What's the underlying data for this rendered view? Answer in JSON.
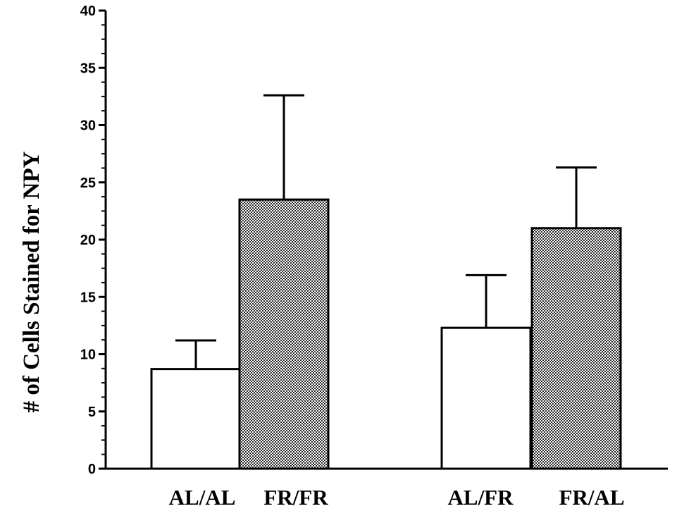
{
  "chart_data": {
    "type": "bar",
    "categories": [
      "AL/AL",
      "FR/FR",
      "AL/FR",
      "FR/AL"
    ],
    "values": [
      8.7,
      23.5,
      12.3,
      21.0
    ],
    "error_upper": [
      11.2,
      32.6,
      16.9,
      26.3
    ],
    "fills": [
      "open",
      "stippled",
      "open",
      "stippled"
    ],
    "title": "",
    "xlabel": "",
    "ylabel": "# of Cells Stained for NPY",
    "ylim": [
      0,
      40
    ],
    "yticks": [
      "0",
      "5",
      "10",
      "15",
      "20",
      "25",
      "30",
      "35",
      "40"
    ],
    "grid": false,
    "legend": "none",
    "colors": {
      "axis": "#000000",
      "open_bar": "#ffffff",
      "stipple_bg": "#ffffff",
      "stipple_dot": "#000000"
    }
  }
}
